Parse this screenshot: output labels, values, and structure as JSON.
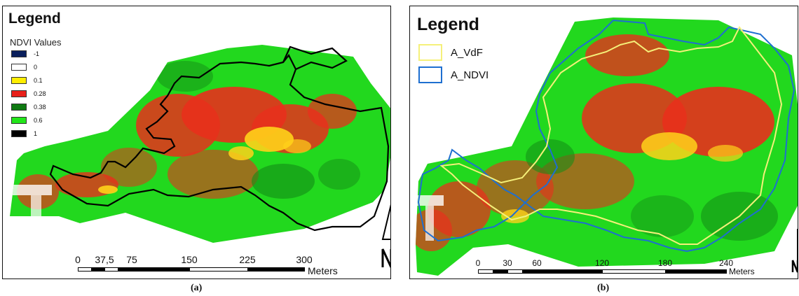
{
  "panels": [
    {
      "caption": "(a)",
      "legend_title": "Legend",
      "legend_subtitle": "NDVI Values",
      "ndvi_classes": [
        {
          "label": "-1",
          "color": "#0a1f5c"
        },
        {
          "label": "0",
          "color": "#ffffff"
        },
        {
          "label": "0.1",
          "color": "#ffee00"
        },
        {
          "label": "0.28",
          "color": "#e8201a"
        },
        {
          "label": "0.38",
          "color": "#0f7a12"
        },
        {
          "label": "0.6",
          "color": "#22e61a"
        },
        {
          "label": "1",
          "color": "#000000"
        }
      ],
      "boundary_color": "#000000",
      "scale": {
        "ticks": [
          "0",
          "37,5",
          "75",
          "150",
          "225",
          "300"
        ],
        "unit": "Meters"
      }
    },
    {
      "caption": "(b)",
      "legend_title": "Legend",
      "polygons": [
        {
          "label": "A_VdF",
          "color": "#f5f07a"
        },
        {
          "label": "A_NDVI",
          "color": "#1e6fd0"
        }
      ],
      "scale": {
        "ticks": [
          "0",
          "30",
          "60",
          "120",
          "180",
          "240"
        ],
        "unit": "Meters"
      }
    }
  ],
  "colors": {
    "vegetation": "#22d81e",
    "dark_vegetation": "#138c16",
    "stress": "#e8301c",
    "bare": "#ffd21a"
  }
}
